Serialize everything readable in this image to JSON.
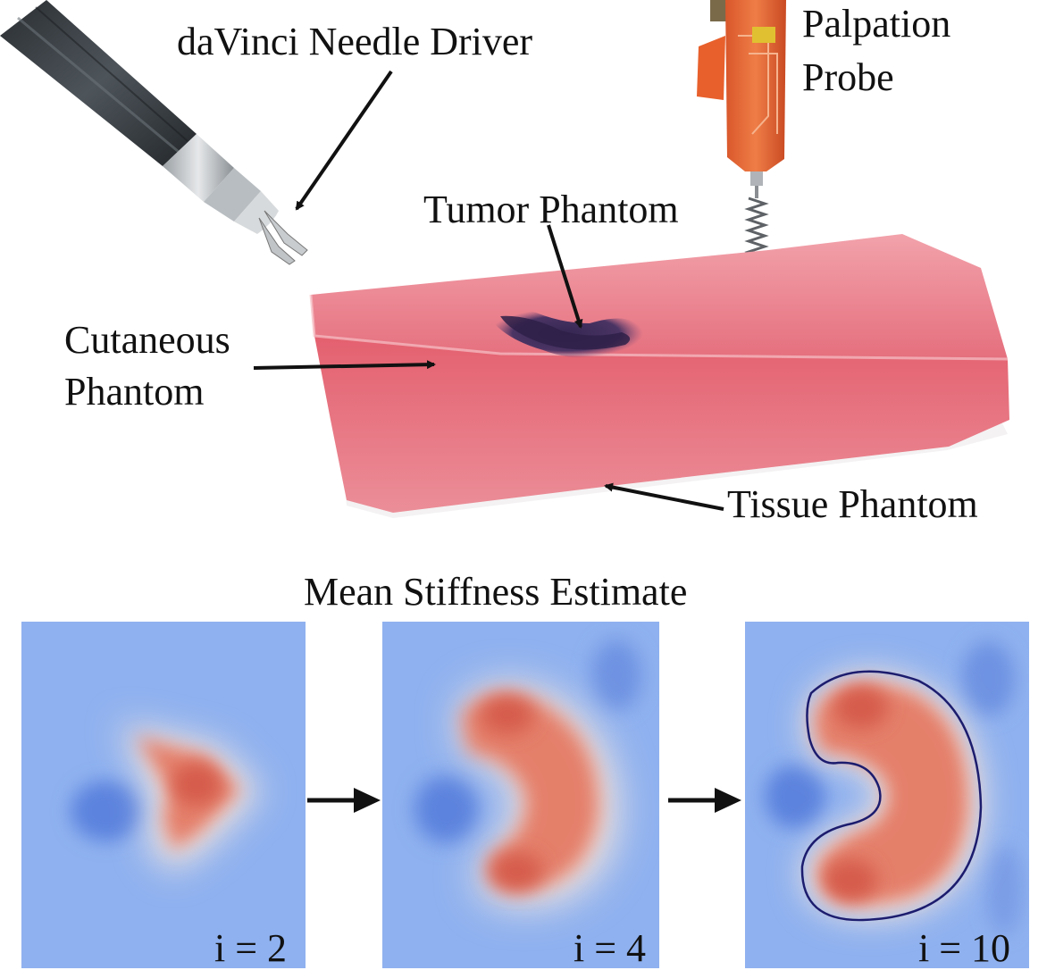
{
  "photo": {
    "labels": {
      "needle_driver": "daVinci Needle Driver",
      "palpation_probe_line1": "Palpation",
      "palpation_probe_line2": "Probe",
      "tumor_phantom": "Tumor Phantom",
      "cutaneous_phantom_line1": "Cutaneous",
      "cutaneous_phantom_line2": "Phantom",
      "tissue_phantom": "Tissue Phantom"
    }
  },
  "estimate": {
    "title": "Mean Stiffness Estimate",
    "panels": [
      {
        "iteration_label": "i = 2"
      },
      {
        "iteration_label": "i = 4"
      },
      {
        "iteration_label": "i = 10"
      }
    ]
  },
  "colors": {
    "low_stiffness": "#8fb1ef",
    "high_stiffness": "#dd6b55",
    "estimated_boundary": "#1c1c6e",
    "phantom_pink": "#e26a79",
    "tumor_purple": "#3e2a5c"
  }
}
